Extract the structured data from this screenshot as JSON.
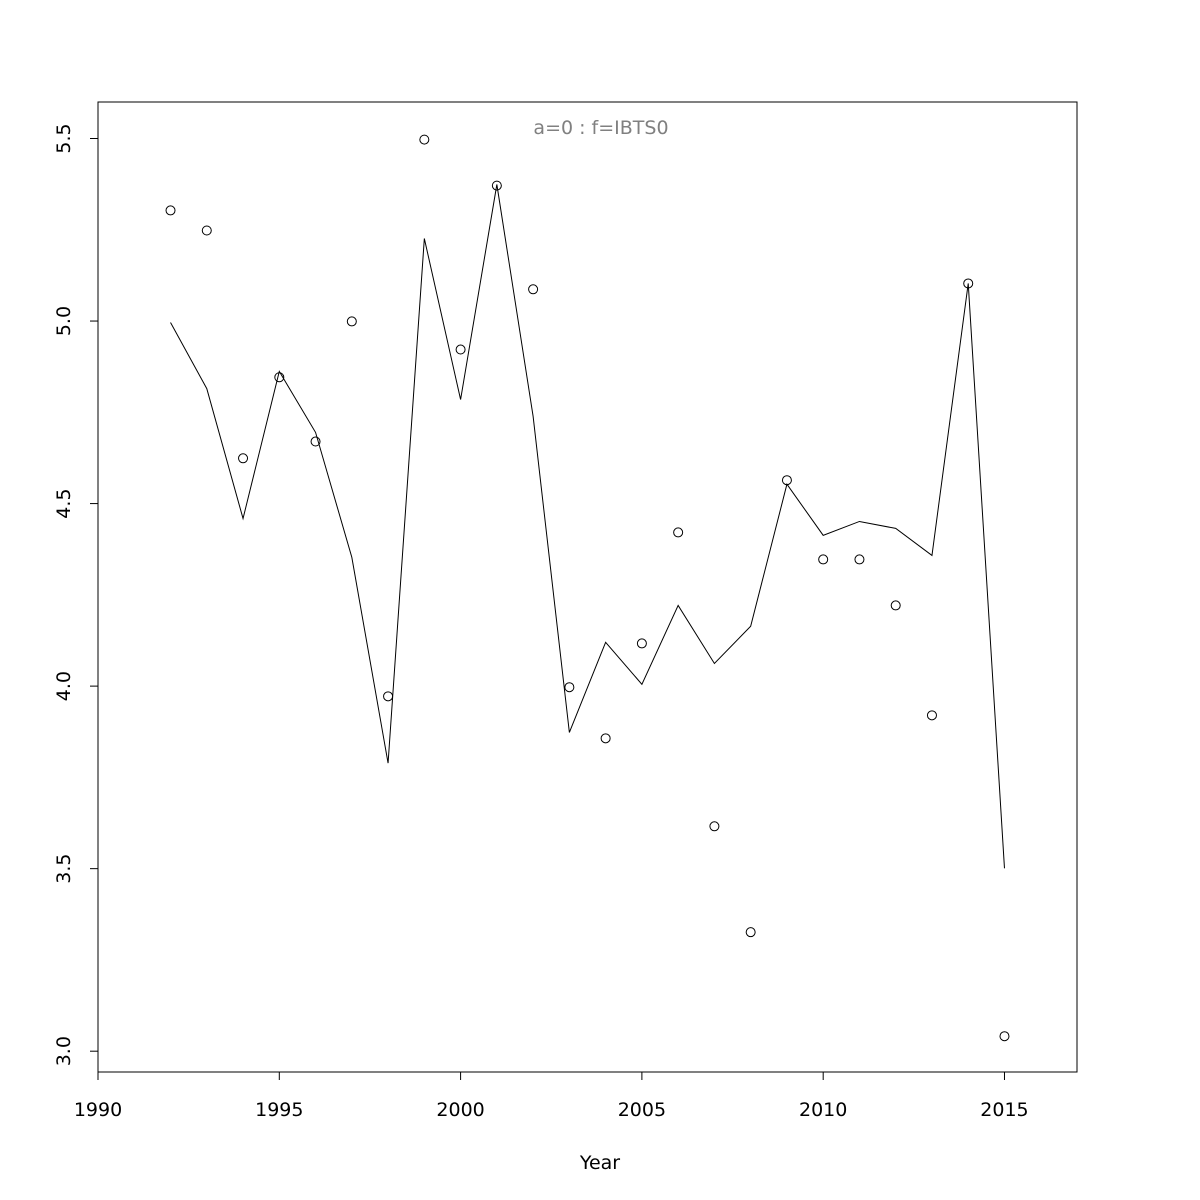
{
  "chart_data": {
    "type": "scatter-line",
    "title": "a=0  :  f=IBTS0",
    "x_label": "Year",
    "x": [
      1992,
      1993,
      1994,
      1995,
      1996,
      1997,
      1998,
      1999,
      2000,
      2001,
      2002,
      2003,
      2004,
      2005,
      2006,
      2007,
      2008,
      2009,
      2010,
      2011,
      2012,
      2013,
      2014,
      2015
    ],
    "series": [
      {
        "style": "points",
        "color": "#000000",
        "values": [
          5.303,
          5.248,
          4.624,
          4.846,
          4.67,
          4.999,
          3.972,
          5.497,
          4.922,
          5.371,
          5.087,
          3.997,
          3.857,
          4.117,
          4.421,
          3.616,
          3.326,
          4.564,
          4.347,
          4.347,
          4.221,
          3.92,
          5.103,
          3.041
        ]
      },
      {
        "style": "line",
        "color": "#000000",
        "values": [
          4.996,
          4.815,
          4.459,
          4.862,
          4.695,
          4.353,
          3.789,
          5.226,
          4.785,
          5.374,
          4.739,
          3.873,
          4.12,
          4.005,
          4.221,
          4.062,
          4.164,
          4.553,
          4.413,
          4.451,
          4.432,
          4.358,
          5.103,
          3.501
        ]
      }
    ],
    "xlim": [
      1990,
      2017
    ],
    "xticks": [
      1990,
      1995,
      2000,
      2005,
      2010,
      2015
    ],
    "ylim": [
      2.943,
      5.6
    ],
    "yticks": [
      {
        "value": 3,
        "label": "3.0"
      },
      3.5,
      {
        "value": 4,
        "label": "4.0"
      },
      4.5,
      {
        "value": 5,
        "label": "5.0"
      },
      5.5
    ],
    "title_color": "#808080"
  }
}
